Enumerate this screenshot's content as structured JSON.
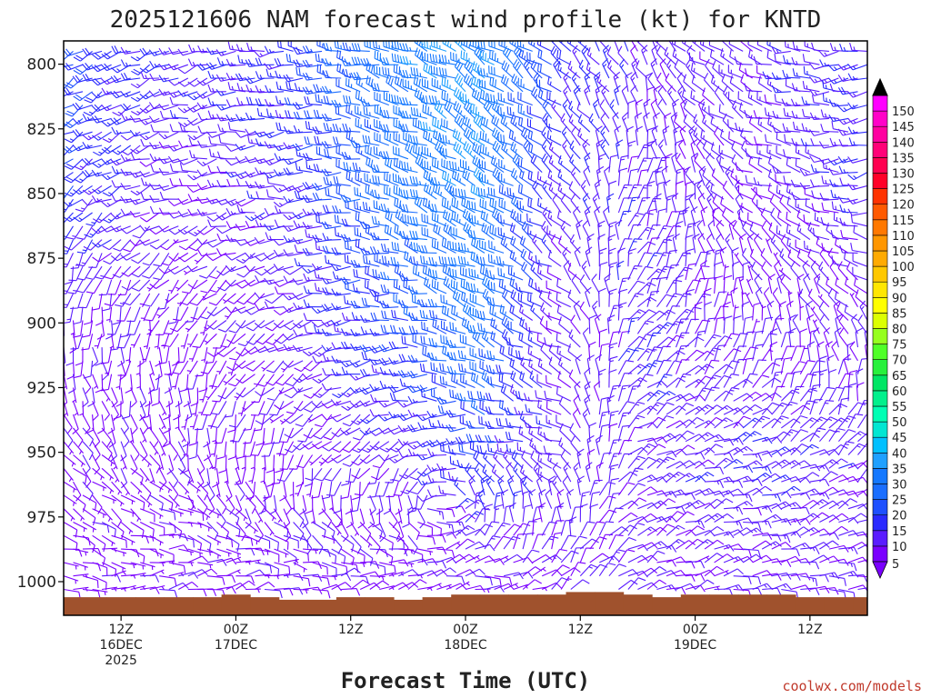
{
  "chart_data": {
    "type": "wind-barb-time-height",
    "title": "2025121606 NAM forecast wind profile (kt) for KNTD",
    "xlabel": "Forecast Time (UTC)",
    "ylabel": "",
    "credit": "coolwx.com/models",
    "y_axis": {
      "variable": "pressure (hPa)",
      "range": [
        791,
        1013
      ],
      "inverted": true,
      "ticks": [
        800,
        825,
        850,
        875,
        900,
        925,
        950,
        975,
        1000
      ]
    },
    "x_axis": {
      "range_hours": [
        0,
        84
      ],
      "ticks": [
        {
          "hour": 6,
          "line1": "12Z",
          "line2": "16DEC",
          "line3": "2025"
        },
        {
          "hour": 18,
          "line1": "00Z",
          "line2": "17DEC",
          "line3": ""
        },
        {
          "hour": 30,
          "line1": "12Z",
          "line2": "",
          "line3": ""
        },
        {
          "hour": 42,
          "line1": "00Z",
          "line2": "18DEC",
          "line3": ""
        },
        {
          "hour": 54,
          "line1": "12Z",
          "line2": "",
          "line3": ""
        },
        {
          "hour": 66,
          "line1": "00Z",
          "line2": "19DEC",
          "line3": ""
        },
        {
          "hour": 78,
          "line1": "12Z",
          "line2": "",
          "line3": ""
        }
      ]
    },
    "colorbar": {
      "min": 5,
      "max": 150,
      "step": 5,
      "units": "kt",
      "levels": [
        5,
        10,
        15,
        20,
        25,
        30,
        35,
        40,
        45,
        50,
        55,
        60,
        65,
        70,
        75,
        80,
        85,
        90,
        95,
        100,
        105,
        110,
        115,
        120,
        125,
        130,
        135,
        140,
        145,
        150
      ],
      "colors": [
        "#7a00ff",
        "#5a1cff",
        "#2a2aff",
        "#1e50ff",
        "#1a6eff",
        "#1478ff",
        "#1fa0ff",
        "#00c0ff",
        "#00e6d2",
        "#00ffb4",
        "#00f08c",
        "#00e664",
        "#28f03c",
        "#50ff28",
        "#96ff1e",
        "#dcff00",
        "#ffff00",
        "#ffe600",
        "#ffc800",
        "#ffaa00",
        "#ff9600",
        "#ff7800",
        "#ff5a00",
        "#ff3200",
        "#ff0028",
        "#ff0050",
        "#ff0078",
        "#ff00a0",
        "#ff00c8",
        "#ff00ff"
      ]
    },
    "series": [
      {
        "name": "wind",
        "description": "Approximate wind direction (deg) and speed (kt) by forecast hour and pressure level, estimated from barbs",
        "keyframes": [
          {
            "hour": 0,
            "profile": [
              [
                800,
                240,
                22
              ],
              [
                850,
                230,
                18
              ],
              [
                900,
                180,
                10
              ],
              [
                950,
                140,
                8
              ],
              [
                1000,
                100,
                7
              ]
            ]
          },
          {
            "hour": 12,
            "profile": [
              [
                800,
                250,
                14
              ],
              [
                850,
                260,
                10
              ],
              [
                900,
                200,
                8
              ],
              [
                950,
                160,
                8
              ],
              [
                1000,
                70,
                8
              ]
            ]
          },
          {
            "hour": 24,
            "profile": [
              [
                800,
                270,
                17
              ],
              [
                850,
                260,
                14
              ],
              [
                900,
                250,
                10
              ],
              [
                950,
                210,
                8
              ],
              [
                1000,
                80,
                9
              ]
            ]
          },
          {
            "hour": 36,
            "profile": [
              [
                800,
                290,
                32
              ],
              [
                850,
                290,
                30
              ],
              [
                900,
                280,
                22
              ],
              [
                950,
                240,
                12
              ],
              [
                1000,
                60,
                8
              ]
            ]
          },
          {
            "hour": 44,
            "profile": [
              [
                800,
                300,
                36
              ],
              [
                850,
                300,
                34
              ],
              [
                900,
                295,
                30
              ],
              [
                950,
                280,
                20
              ],
              [
                1000,
                90,
                8
              ]
            ]
          },
          {
            "hour": 52,
            "profile": [
              [
                800,
                310,
                18
              ],
              [
                850,
                310,
                14
              ],
              [
                900,
                300,
                10
              ],
              [
                950,
                290,
                12
              ],
              [
                1000,
                50,
                10
              ]
            ]
          },
          {
            "hour": 60,
            "profile": [
              [
                800,
                330,
                12
              ],
              [
                850,
                20,
                12
              ],
              [
                900,
                40,
                14
              ],
              [
                950,
                60,
                12
              ],
              [
                1000,
                60,
                10
              ]
            ]
          },
          {
            "hour": 72,
            "profile": [
              [
                800,
                290,
                12
              ],
              [
                850,
                300,
                10
              ],
              [
                900,
                360,
                8
              ],
              [
                950,
                70,
                14
              ],
              [
                1000,
                80,
                10
              ]
            ]
          },
          {
            "hour": 84,
            "profile": [
              [
                800,
                260,
                16
              ],
              [
                850,
                260,
                14
              ],
              [
                900,
                320,
                10
              ],
              [
                950,
                40,
                12
              ],
              [
                1000,
                90,
                10
              ]
            ]
          }
        ]
      }
    ],
    "surface_pressure": {
      "hours": [
        0,
        3,
        6,
        9,
        12,
        15,
        18,
        21,
        24,
        27,
        30,
        33,
        36,
        39,
        42,
        45,
        48,
        51,
        54,
        57,
        60,
        63,
        66,
        69,
        72,
        75,
        78,
        81,
        84
      ],
      "values": [
        1006,
        1006,
        1006,
        1006,
        1006,
        1006,
        1005,
        1006,
        1007,
        1007,
        1006,
        1006,
        1007,
        1006,
        1005,
        1005,
        1005,
        1005,
        1004,
        1004,
        1005,
        1006,
        1005,
        1005,
        1005,
        1005,
        1006,
        1006,
        1006
      ]
    }
  },
  "colors": {
    "ground": "#a0522d",
    "frame": "#000000"
  }
}
